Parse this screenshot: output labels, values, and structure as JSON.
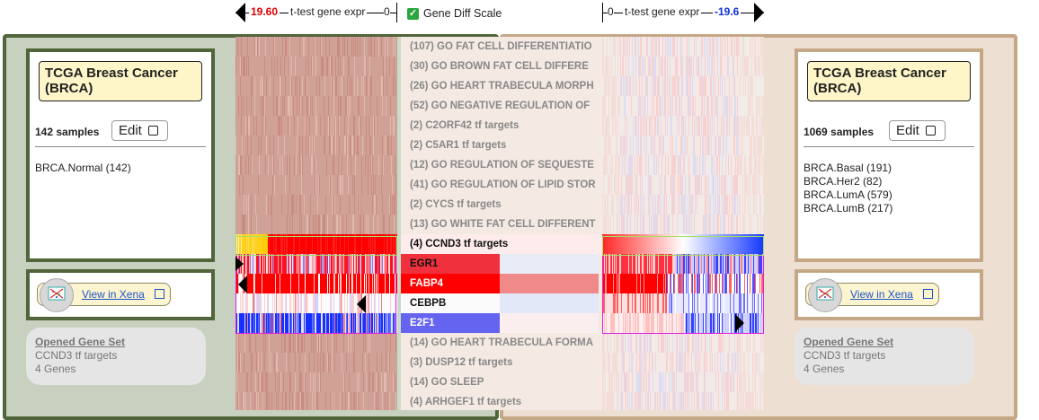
{
  "header": {
    "left_value": "19.60",
    "left_label": "t-test gene expr",
    "left_zero": "0",
    "diff_scale_label": "Gene Diff Scale",
    "diff_scale_checked": true,
    "right_zero": "0",
    "right_label": "t-test gene expr",
    "right_value": "-19.6"
  },
  "left_cohort": {
    "title": "TCGA Breast Cancer (BRCA)",
    "samples": "142 samples",
    "edit_label": "Edit",
    "subgroups": [
      "BRCA.Normal (142)"
    ],
    "view_link": "View in Xena",
    "opened_heading": "Opened Gene Set",
    "opened_name": "CCND3 tf targets",
    "opened_count": "4 Genes"
  },
  "right_cohort": {
    "title": "TCGA Breast Cancer (BRCA)",
    "samples": "1069 samples",
    "edit_label": "Edit",
    "subgroups": [
      "BRCA.Basal (191)",
      "BRCA.Her2 (82)",
      "BRCA.LumA (579)",
      "BRCA.LumB (217)"
    ],
    "view_link": "View in Xena",
    "opened_heading": "Opened Gene Set",
    "opened_name": "CCND3 tf targets",
    "opened_count": "4 Genes"
  },
  "gene_sets_above": [
    "(107) GO FAT CELL DIFFERENTIATIO",
    "(30) GO BROWN FAT CELL DIFFERE",
    "(26) GO HEART TRABECULA MORPH",
    "(52) GO NEGATIVE REGULATION OF",
    "(2) C2ORF42 tf targets",
    "(2) C5AR1 tf targets",
    "(12) GO REGULATION OF SEQUESTE",
    "(41) GO REGULATION OF LIPID STOR",
    "(2) CYCS tf targets",
    "(13) GO WHITE FAT CELL DIFFERENT"
  ],
  "open_gene_set": "(4) CCND3 tf targets",
  "genes": [
    {
      "name": "EGR1",
      "color": "#f0303c",
      "diff_color": "#e8ecf6",
      "text_color": "#111"
    },
    {
      "name": "FABP4",
      "color": "#ff0000",
      "diff_color": "#f08a8a",
      "text_color": "#fff"
    },
    {
      "name": "CEBPB",
      "color": "#fbfbfb",
      "diff_color": "#e2e8f8",
      "text_color": "#111"
    },
    {
      "name": "E2F1",
      "color": "#6464f0",
      "diff_color": "#fbeeee",
      "text_color": "#fff"
    }
  ],
  "gene_sets_below": [
    "(14) GO HEART TRABECULA FORMA",
    "(3) DUSP12 tf targets",
    "(14) GO SLEEP",
    "(4) ARHGEF1 tf targets"
  ],
  "colors": {
    "left_panel_border": "#51653a",
    "right_panel_border": "#c4a885",
    "highlight_border": "#e020e0",
    "high_expr": "#ff0000",
    "low_expr": "#1a2cff",
    "link": "#1a55c8"
  }
}
